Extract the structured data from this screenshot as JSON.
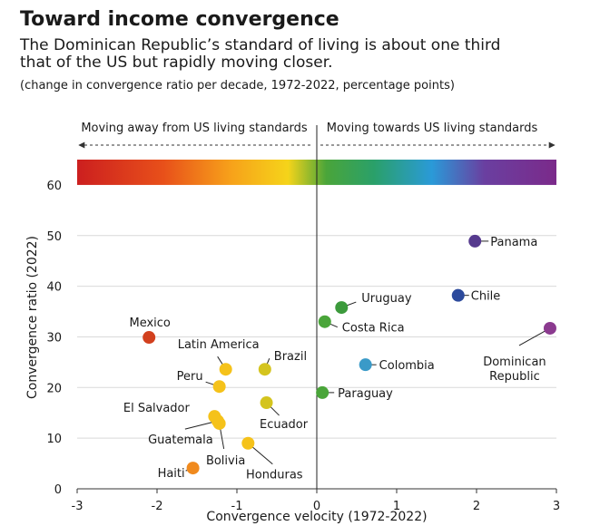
{
  "chart_data": {
    "type": "scatter",
    "title": "Toward income convergence",
    "subtitle": "The Dominican Republic’s standard of living is about one third that of the US but rapidly moving closer.",
    "note": "(change in convergence ratio per decade, 1972-2022, percentage points)",
    "left_annotation": "Moving away from US living standards",
    "right_annotation": "Moving towards US living standards",
    "x_label": "Convergence velocity (1972-2022)",
    "y_label": "Convergence ratio (2022)",
    "xlim": [
      -3,
      3
    ],
    "xticks": [
      -3,
      -2,
      -1,
      0,
      1,
      2,
      3
    ],
    "ylim": [
      0,
      65
    ],
    "yticks": [
      0,
      10,
      20,
      30,
      40,
      50,
      60
    ],
    "grid": true,
    "points": [
      {
        "label": "Panama",
        "x": 1.98,
        "y": 48.9,
        "color": "#563a8e"
      },
      {
        "label": "Chile",
        "x": 1.77,
        "y": 38.2,
        "color": "#2c4a9c"
      },
      {
        "label": "Dominican Republic",
        "x": 2.92,
        "y": 31.7,
        "color": "#8b3a8f"
      },
      {
        "label": "Uruguay",
        "x": 0.31,
        "y": 35.8,
        "color": "#3c9a3c"
      },
      {
        "label": "Costa Rica",
        "x": 0.1,
        "y": 33.0,
        "color": "#4aa53a"
      },
      {
        "label": "Colombia",
        "x": 0.61,
        "y": 24.5,
        "color": "#3a9ac8"
      },
      {
        "label": "Paraguay",
        "x": 0.07,
        "y": 19.0,
        "color": "#4aa53a"
      },
      {
        "label": "Mexico",
        "x": -2.1,
        "y": 29.9,
        "color": "#d2401e"
      },
      {
        "label": "Latin America",
        "x": -1.14,
        "y": 23.6,
        "color": "#f5c21a"
      },
      {
        "label": "Brazil",
        "x": -0.65,
        "y": 23.6,
        "color": "#d4c41e"
      },
      {
        "label": "Peru",
        "x": -1.22,
        "y": 20.2,
        "color": "#f5c21a"
      },
      {
        "label": "Ecuador",
        "x": -0.63,
        "y": 17.0,
        "color": "#d4c41e"
      },
      {
        "label": "El Salvador",
        "x": -1.28,
        "y": 14.3,
        "color": "#f5c21a"
      },
      {
        "label": "Guatemala",
        "x": -1.24,
        "y": 13.4,
        "color": "#f5c21a"
      },
      {
        "label": "Bolivia",
        "x": -1.22,
        "y": 12.9,
        "color": "#f5c21a"
      },
      {
        "label": "Honduras",
        "x": -0.86,
        "y": 9.0,
        "color": "#f5c21a"
      },
      {
        "label": "Haiti",
        "x": -1.55,
        "y": 4.1,
        "color": "#f08a1e"
      }
    ]
  }
}
